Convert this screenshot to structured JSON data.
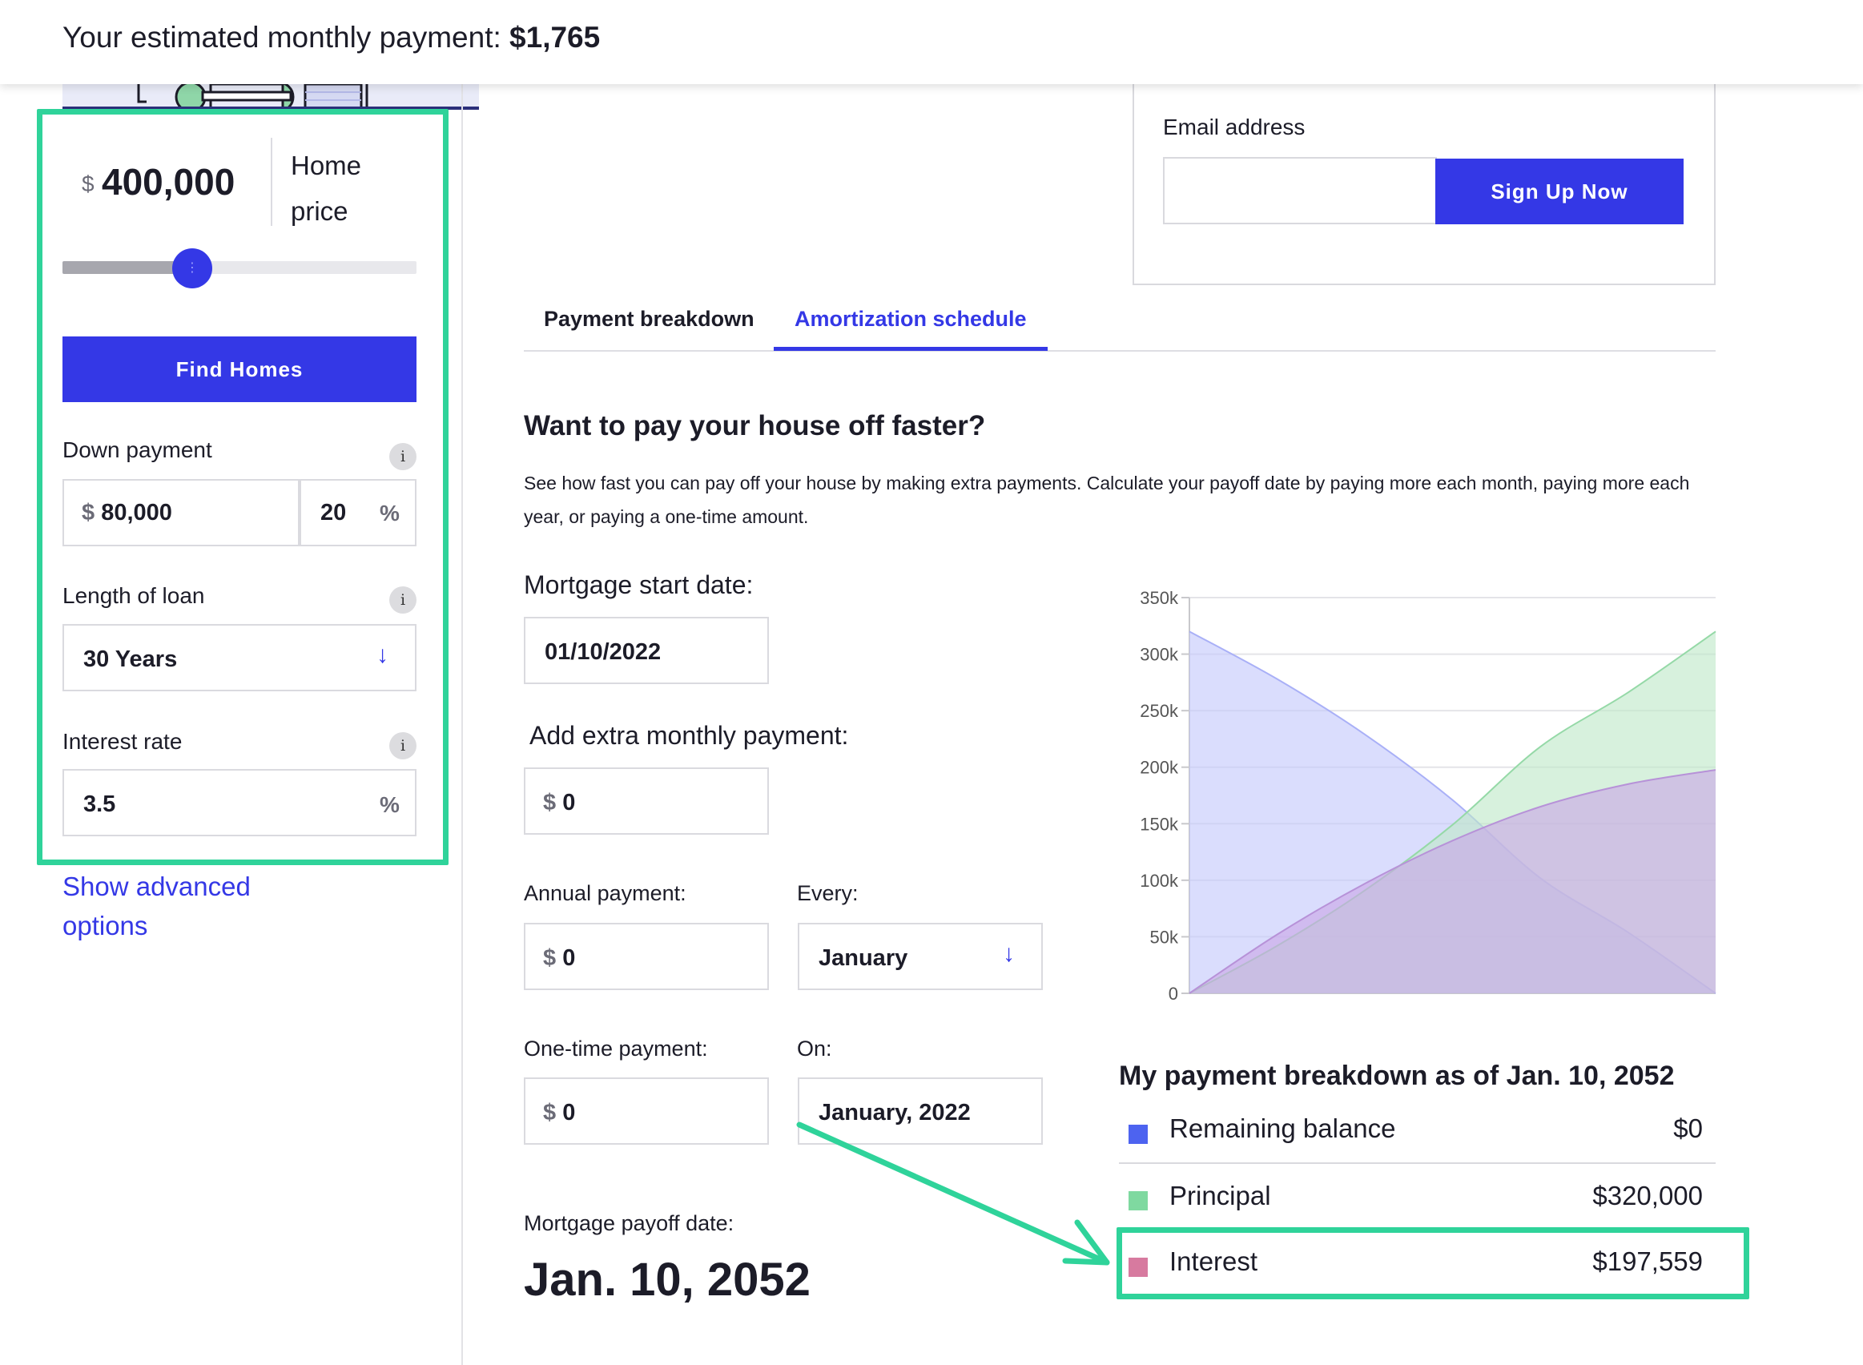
{
  "banner": {
    "prefix": "Your estimated monthly payment: ",
    "amount": "$1,765"
  },
  "left_panel": {
    "home_price": {
      "currency": "$",
      "value": "400,000",
      "label": "Home price"
    },
    "slider": {
      "handle_glyph": "⋮",
      "position_fraction": 0.24
    },
    "find_homes_label": "Find Homes",
    "down_payment": {
      "label": "Down payment",
      "currency": "$",
      "amount": "80,000",
      "percent": "20",
      "percent_symbol": "%"
    },
    "loan_length": {
      "label": "Length of loan",
      "value": "30 Years"
    },
    "interest_rate": {
      "label": "Interest rate",
      "value": "3.5",
      "percent_symbol": "%"
    },
    "info_glyph": "i",
    "advanced_link": "Show advanced options"
  },
  "newsletter": {
    "email_label": "Email address",
    "email_value": "",
    "signup_label": "Sign Up Now"
  },
  "tabs": [
    {
      "label": "Payment breakdown",
      "active": false
    },
    {
      "label": "Amortization schedule",
      "active": true
    }
  ],
  "amortization": {
    "heading": "Want to pay your house off faster?",
    "description": "See how fast you can pay off your house by making extra payments. Calculate your payoff date by paying more each month, paying more each year, or paying a one-time amount.",
    "start_date": {
      "label": "Mortgage start date:",
      "value": "01/10/2022"
    },
    "extra_monthly": {
      "label": "Add extra monthly payment:",
      "currency": "$",
      "value": "0"
    },
    "annual": {
      "label": "Annual payment:",
      "currency": "$",
      "value": "0"
    },
    "every": {
      "label": "Every:",
      "value": "January"
    },
    "one_time": {
      "label": "One-time payment:",
      "currency": "$",
      "value": "0"
    },
    "on": {
      "label": "On:",
      "value": "January, 2022"
    },
    "payoff": {
      "label": "Mortgage payoff date:",
      "value": "Jan. 10, 2052"
    }
  },
  "breakdown": {
    "title": "My payment breakdown as of Jan. 10, 2052",
    "rows": [
      {
        "name": "Remaining balance",
        "value": "$0",
        "color": "#4d63f0"
      },
      {
        "name": "Principal",
        "value": "$320,000",
        "color": "#7fd9a0"
      },
      {
        "name": "Interest",
        "value": "$197,559",
        "color": "#d77a9f"
      }
    ]
  },
  "colors": {
    "accent": "#3438e6",
    "highlight": "#2fd39a",
    "balance_fill": "#c3c8fb",
    "principal_fill": "#bfe8c8",
    "interest_fill": "#c9a7e6"
  },
  "chart_data": {
    "type": "area",
    "x": [
      0,
      5,
      10,
      15,
      20,
      25,
      30
    ],
    "y_tick_labels": [
      "0",
      "50k",
      "100k",
      "150k",
      "200k",
      "250k",
      "300k",
      "350k"
    ],
    "ylim": [
      0,
      350000
    ],
    "grid": true,
    "series": [
      {
        "name": "Remaining balance",
        "values": [
          320000,
          278000,
          229000,
          171000,
          102000,
          54000,
          0
        ]
      },
      {
        "name": "Principal",
        "values": [
          0,
          42000,
          91000,
          149000,
          218000,
          266000,
          320000
        ]
      },
      {
        "name": "Interest",
        "values": [
          0,
          52000,
          97000,
          135000,
          165000,
          185000,
          197559
        ]
      }
    ]
  }
}
